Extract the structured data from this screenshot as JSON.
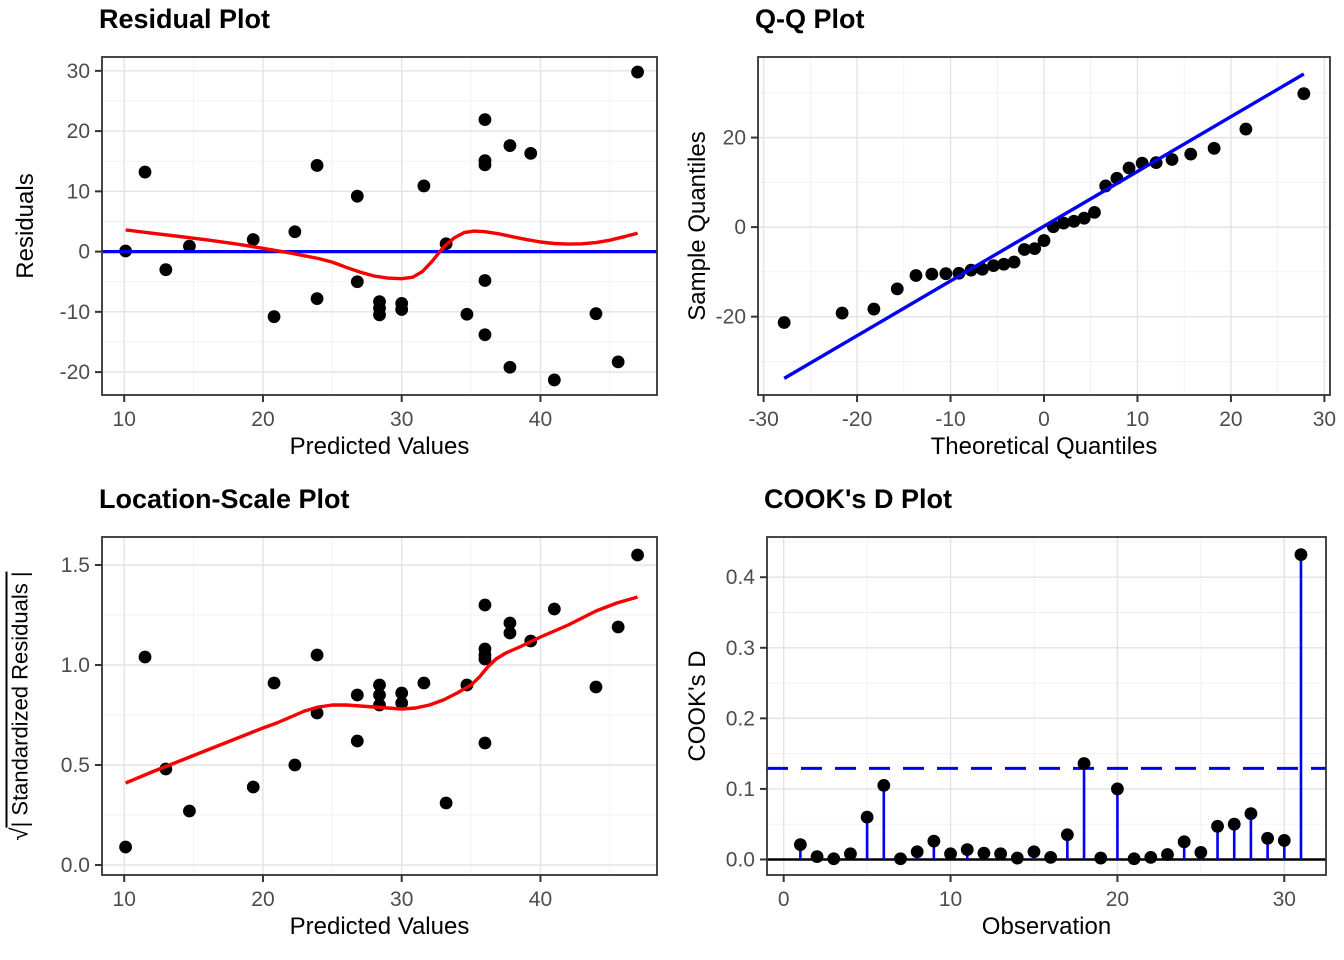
{
  "colors": {
    "red": "#F80000",
    "blue": "#0000F5",
    "black": "#000000",
    "point": "#000000",
    "grid_major": "#E3E3E3",
    "grid_minor": "#F1F1F1",
    "panel_border": "#333333",
    "tick_mark": "#333333",
    "tick_label": "#4D4D4D",
    "title_text": "#000000",
    "background": "#FFFFFF"
  },
  "chart_data": [
    {
      "type": "scatter",
      "title": "Residual Plot",
      "xlabel": "Predicted Values",
      "ylabel": "Residuals",
      "xlim": [
        8.4,
        48.4
      ],
      "ylim": [
        -23.8,
        32.3
      ],
      "xticks": [
        10,
        20,
        30,
        40
      ],
      "xtick_labels": [
        "10",
        "20",
        "30",
        "40"
      ],
      "yticks": [
        -20,
        -10,
        0,
        10,
        20,
        30
      ],
      "ytick_labels": [
        "-20",
        "-10",
        "0",
        "10",
        "20",
        "30"
      ],
      "xminor": [
        15,
        25,
        35,
        45
      ],
      "yminor": [
        -15,
        -5,
        5,
        15,
        25
      ],
      "grid": true,
      "legend": "none",
      "points": [
        [
          10.1,
          0.1
        ],
        [
          11.5,
          13.2
        ],
        [
          13,
          -3
        ],
        [
          14.7,
          0.9
        ],
        [
          19.3,
          2
        ],
        [
          20.8,
          -10.8
        ],
        [
          22.3,
          3.3
        ],
        [
          23.9,
          14.3
        ],
        [
          23.9,
          -7.8
        ],
        [
          26.8,
          9.2
        ],
        [
          26.8,
          -5
        ],
        [
          28.4,
          -8.3
        ],
        [
          28.4,
          -9.4
        ],
        [
          28.4,
          -10.5
        ],
        [
          30,
          -8.6
        ],
        [
          30,
          -9.6
        ],
        [
          31.6,
          10.9
        ],
        [
          33.2,
          1.3
        ],
        [
          34.7,
          -10.4
        ],
        [
          36,
          21.9
        ],
        [
          36,
          15.1
        ],
        [
          36,
          14.4
        ],
        [
          36,
          -4.8
        ],
        [
          36,
          -13.8
        ],
        [
          37.8,
          17.6
        ],
        [
          37.8,
          -19.2
        ],
        [
          39.3,
          16.3
        ],
        [
          41,
          -21.3
        ],
        [
          44,
          -10.3
        ],
        [
          45.6,
          -18.3
        ],
        [
          47,
          29.8
        ]
      ],
      "lines": [
        {
          "name": "zero-reference-line",
          "color": "blue",
          "width": 3.2,
          "dash": null,
          "layer": "front",
          "pts": [
            [
              8.4,
              0
            ],
            [
              48.4,
              0
            ]
          ]
        },
        {
          "name": "loess-smooth-curve",
          "color": "red",
          "width": 3.4,
          "dash": null,
          "layer": "front",
          "pts": [
            [
              10.1,
              3.6
            ],
            [
              12,
              3.05
            ],
            [
              14,
              2.5
            ],
            [
              16,
              1.95
            ],
            [
              18,
              1.3
            ],
            [
              20,
              0.55
            ],
            [
              22,
              -0.25
            ],
            [
              23,
              -0.7
            ],
            [
              24,
              -1.15
            ],
            [
              25,
              -1.75
            ],
            [
              26,
              -2.6
            ],
            [
              27,
              -3.4
            ],
            [
              28,
              -4.05
            ],
            [
              29,
              -4.4
            ],
            [
              30,
              -4.5
            ],
            [
              30.8,
              -4.25
            ],
            [
              31.5,
              -3.3
            ],
            [
              32.2,
              -1.6
            ],
            [
              33,
              0.7
            ],
            [
              33.8,
              2.3
            ],
            [
              34.5,
              3.15
            ],
            [
              35.2,
              3.4
            ],
            [
              36,
              3.3
            ],
            [
              37,
              2.95
            ],
            [
              38,
              2.45
            ],
            [
              39,
              2.0
            ],
            [
              40,
              1.6
            ],
            [
              41,
              1.35
            ],
            [
              42,
              1.25
            ],
            [
              43,
              1.3
            ],
            [
              44,
              1.5
            ],
            [
              45,
              1.9
            ],
            [
              46,
              2.45
            ],
            [
              47,
              3.05
            ]
          ]
        }
      ]
    },
    {
      "type": "scatter",
      "title": "Q-Q Plot",
      "xlabel": "Theoretical Quantiles",
      "ylabel": "Sample Quantiles",
      "xlim": [
        -30.6,
        30.6
      ],
      "ylim": [
        -37.5,
        38
      ],
      "xticks": [
        -30,
        -20,
        -10,
        0,
        10,
        20,
        30
      ],
      "xtick_labels": [
        "-30",
        "-20",
        "-10",
        "0",
        "10",
        "20",
        "30"
      ],
      "yticks": [
        -20,
        0,
        20
      ],
      "ytick_labels": [
        "-20",
        "0",
        "20"
      ],
      "xminor": [
        -25,
        -15,
        -5,
        5,
        15,
        25
      ],
      "yminor": [
        -30,
        -10,
        10,
        30
      ],
      "grid": true,
      "legend": "none",
      "points": [
        [
          -27.8,
          -21.3
        ],
        [
          -21.6,
          -19.2
        ],
        [
          -18.2,
          -18.3
        ],
        [
          -15.7,
          -13.8
        ],
        [
          -13.7,
          -10.8
        ],
        [
          -12,
          -10.5
        ],
        [
          -10.5,
          -10.4
        ],
        [
          -9.1,
          -10.3
        ],
        [
          -7.8,
          -9.6
        ],
        [
          -6.6,
          -9.4
        ],
        [
          -5.4,
          -8.6
        ],
        [
          -4.3,
          -8.3
        ],
        [
          -3.2,
          -7.8
        ],
        [
          -2.1,
          -5
        ],
        [
          -1,
          -4.8
        ],
        [
          0,
          -3
        ],
        [
          1,
          0.1
        ],
        [
          2.1,
          0.9
        ],
        [
          3.2,
          1.3
        ],
        [
          4.3,
          2
        ],
        [
          5.4,
          3.3
        ],
        [
          6.6,
          9.2
        ],
        [
          7.8,
          10.9
        ],
        [
          9.1,
          13.2
        ],
        [
          10.5,
          14.3
        ],
        [
          12,
          14.4
        ],
        [
          13.7,
          15.1
        ],
        [
          15.7,
          16.3
        ],
        [
          18.2,
          17.6
        ],
        [
          21.6,
          21.9
        ],
        [
          27.8,
          29.8
        ]
      ],
      "lines": [
        {
          "name": "qq-reference-line",
          "color": "blue",
          "width": 3.4,
          "dash": null,
          "layer": "front",
          "pts": [
            [
              -27.8,
              -33.8
            ],
            [
              27.8,
              34.2
            ]
          ]
        }
      ]
    },
    {
      "type": "scatter",
      "title": "Location-Scale Plot",
      "xlabel": "Predicted Values",
      "ylabel": "| Standardized Residuals |",
      "ylabel_radical": "√",
      "ylabel_sqrt": true,
      "xlim": [
        8.4,
        48.4
      ],
      "ylim": [
        -0.05,
        1.64
      ],
      "xticks": [
        10,
        20,
        30,
        40
      ],
      "xtick_labels": [
        "10",
        "20",
        "30",
        "40"
      ],
      "yticks": [
        0.0,
        0.5,
        1.0,
        1.5
      ],
      "ytick_labels": [
        "0.0",
        "0.5",
        "1.0",
        "1.5"
      ],
      "xminor": [
        15,
        25,
        35,
        45
      ],
      "yminor": [
        0.25,
        0.75,
        1.25
      ],
      "grid": true,
      "legend": "none",
      "points": [
        [
          10.1,
          0.09
        ],
        [
          11.5,
          1.04
        ],
        [
          13,
          0.48
        ],
        [
          14.7,
          0.27
        ],
        [
          19.3,
          0.39
        ],
        [
          20.8,
          0.91
        ],
        [
          22.3,
          0.5
        ],
        [
          23.9,
          1.05
        ],
        [
          23.9,
          0.76
        ],
        [
          26.8,
          0.85
        ],
        [
          26.8,
          0.62
        ],
        [
          28.4,
          0.8
        ],
        [
          28.4,
          0.85
        ],
        [
          28.4,
          0.9
        ],
        [
          30,
          0.81
        ],
        [
          30,
          0.86
        ],
        [
          31.6,
          0.91
        ],
        [
          33.2,
          0.31
        ],
        [
          34.7,
          0.9
        ],
        [
          36,
          1.3
        ],
        [
          36,
          1.08
        ],
        [
          36,
          1.05
        ],
        [
          36,
          1.03
        ],
        [
          36,
          0.61
        ],
        [
          37.8,
          1.16
        ],
        [
          37.8,
          1.21
        ],
        [
          39.3,
          1.12
        ],
        [
          41,
          1.28
        ],
        [
          44,
          0.89
        ],
        [
          45.6,
          1.19
        ],
        [
          47,
          1.55
        ]
      ],
      "lines": [
        {
          "name": "loess-smooth-curve",
          "color": "red",
          "width": 3.4,
          "dash": null,
          "layer": "front",
          "pts": [
            [
              10.1,
              0.41
            ],
            [
              12,
              0.465
            ],
            [
              14,
              0.52
            ],
            [
              16,
              0.575
            ],
            [
              18,
              0.63
            ],
            [
              20,
              0.685
            ],
            [
              21,
              0.71
            ],
            [
              22,
              0.74
            ],
            [
              23,
              0.77
            ],
            [
              24,
              0.79
            ],
            [
              25,
              0.8
            ],
            [
              26,
              0.8
            ],
            [
              27,
              0.795
            ],
            [
              28,
              0.79
            ],
            [
              29,
              0.785
            ],
            [
              30,
              0.78
            ],
            [
              31,
              0.785
            ],
            [
              32,
              0.8
            ],
            [
              33,
              0.825
            ],
            [
              34,
              0.86
            ],
            [
              35,
              0.9
            ],
            [
              35.6,
              0.94
            ],
            [
              36.2,
              0.99
            ],
            [
              36.8,
              1.03
            ],
            [
              37.5,
              1.06
            ],
            [
              38.5,
              1.09
            ],
            [
              40,
              1.14
            ],
            [
              42,
              1.2
            ],
            [
              44,
              1.27
            ],
            [
              45.5,
              1.31
            ],
            [
              47,
              1.34
            ]
          ]
        }
      ]
    },
    {
      "type": "stem",
      "title": "COOK's D Plot",
      "xlabel": "Observation",
      "ylabel": "COOK's D",
      "xlim": [
        -1.0,
        32.5
      ],
      "ylim": [
        -0.022,
        0.457
      ],
      "xticks": [
        0,
        10,
        20,
        30
      ],
      "xtick_labels": [
        "0",
        "10",
        "20",
        "30"
      ],
      "yticks": [
        0.0,
        0.1,
        0.2,
        0.3,
        0.4
      ],
      "ytick_labels": [
        "0.0",
        "0.1",
        "0.2",
        "0.3",
        "0.4"
      ],
      "xminor": [
        5,
        15,
        25
      ],
      "yminor": [
        0.05,
        0.15,
        0.25,
        0.35,
        0.45
      ],
      "grid": true,
      "legend": "none",
      "observations": [
        1,
        2,
        3,
        4,
        5,
        6,
        7,
        8,
        9,
        10,
        11,
        12,
        13,
        14,
        15,
        16,
        17,
        18,
        19,
        20,
        21,
        22,
        23,
        24,
        25,
        26,
        27,
        28,
        29,
        30,
        31
      ],
      "values": [
        0.021,
        0.004,
        0.001,
        0.008,
        0.06,
        0.105,
        0.001,
        0.011,
        0.026,
        0.008,
        0.014,
        0.009,
        0.008,
        0.002,
        0.011,
        0.003,
        0.035,
        0.136,
        0.002,
        0.1,
        0.001,
        0.003,
        0.007,
        0.025,
        0.01,
        0.047,
        0.05,
        0.065,
        0.03,
        0.027,
        0.432
      ],
      "baseline": 0,
      "threshold": 0.129,
      "stem_color": "blue",
      "stem_width": 2.6,
      "lines": [
        {
          "name": "zero-baseline",
          "color": "black",
          "width": 2.4,
          "dash": null,
          "layer": "back",
          "pts": [
            [
              -1.0,
              0
            ],
            [
              32.5,
              0
            ]
          ]
        },
        {
          "name": "cooks-threshold-line",
          "color": "blue",
          "width": 3,
          "dash": "21 13",
          "layer": "front",
          "pts": [
            [
              -1.0,
              0.129
            ],
            [
              32.5,
              0.129
            ]
          ]
        }
      ]
    }
  ]
}
